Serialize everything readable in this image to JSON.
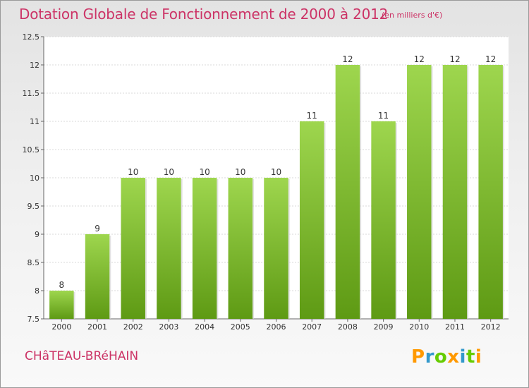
{
  "header": {
    "title": "Dotation Globale de Fonctionnement de 2000 à 2012",
    "subtitle": "(en milliers d'€)"
  },
  "commune": "CHâTEAU-BRéHAIN",
  "logo": {
    "text": "Proxiti"
  },
  "colors": {
    "title": "#cc3366",
    "bar_light": "#9ed64e",
    "bar_dark": "#5e9a14"
  },
  "chart_data": {
    "type": "bar",
    "title": "Dotation Globale de Fonctionnement de 2000 à 2012",
    "subtitle": "(en milliers d'€)",
    "xlabel": "",
    "ylabel": "",
    "categories": [
      "2000",
      "2001",
      "2002",
      "2003",
      "2004",
      "2005",
      "2006",
      "2007",
      "2008",
      "2009",
      "2010",
      "2011",
      "2012"
    ],
    "values": [
      8,
      9,
      10,
      10,
      10,
      10,
      10,
      11,
      12,
      11,
      12,
      12,
      12
    ],
    "data_labels": [
      "8",
      "9",
      "10",
      "10",
      "10",
      "10",
      "10",
      "11",
      "12",
      "11",
      "12",
      "12",
      "12"
    ],
    "ylim": [
      7.5,
      12.5
    ],
    "yticks": [
      7.5,
      8,
      8.5,
      9,
      9.5,
      10,
      10.5,
      11,
      11.5,
      12,
      12.5
    ],
    "ytick_labels": [
      "7.5",
      "8",
      "8.5",
      "9",
      "9.5",
      "10",
      "10.5",
      "11",
      "11.5",
      "12",
      "12.5"
    ],
    "grid": true,
    "legend": "none"
  }
}
